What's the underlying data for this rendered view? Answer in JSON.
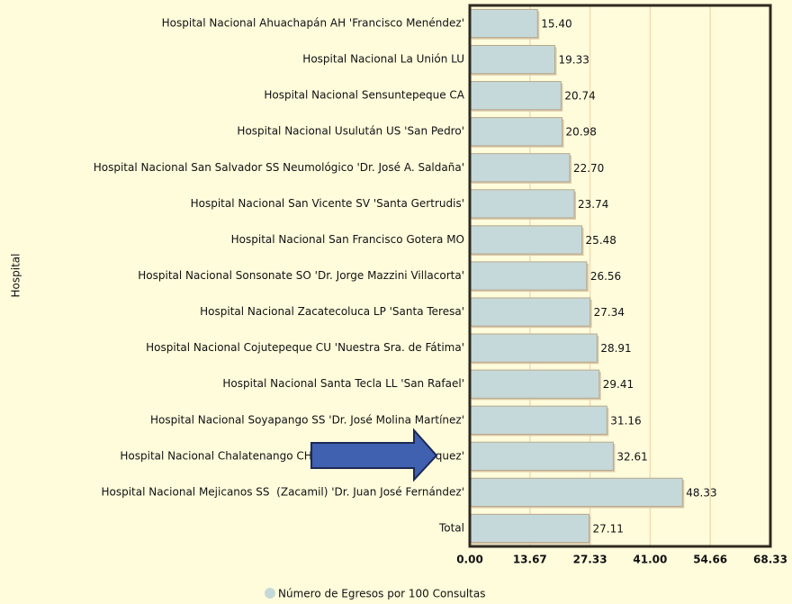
{
  "chart_data": {
    "type": "hbar",
    "ylabel": "Hospital",
    "categories": [
      "Hospital Nacional Ahuachapán AH 'Francisco Menéndez'",
      "Hospital Nacional La Unión LU",
      "Hospital Nacional Sensuntepeque CA",
      "Hospital Nacional Usulután US 'San Pedro'",
      "Hospital Nacional San Salvador SS Neumológico 'Dr. José A. Saldaña'",
      "Hospital Nacional San Vicente SV 'Santa Gertrudis'",
      "Hospital Nacional San Francisco Gotera MO",
      "Hospital Nacional Sonsonate SO 'Dr. Jorge Mazzini Villacorta'",
      "Hospital Nacional Zacatecoluca LP 'Santa Teresa'",
      "Hospital Nacional Cojutepeque CU 'Nuestra Sra. de Fátima'",
      "Hospital Nacional Santa Tecla LL 'San Rafael'",
      "Hospital Nacional Soyapango SS 'Dr. José Molina Martínez'",
      "Hospital Nacional Chalatenango CH 'Dr. Luis Edmundo Vásquez'",
      "Hospital Nacional Mejicanos SS  (Zacamil) 'Dr. Juan José Fernández'",
      "Total"
    ],
    "series": [
      {
        "name": "Número de Egresos por 100 Consultas",
        "color": "#c5d9da",
        "values": [
          15.4,
          19.33,
          20.74,
          20.98,
          22.7,
          23.74,
          25.48,
          26.56,
          27.34,
          28.91,
          29.41,
          31.16,
          32.61,
          48.33,
          27.11
        ],
        "value_labels": [
          "15.40",
          "19.33",
          "20.74",
          "20.98",
          "22.70",
          "23.74",
          "25.48",
          "26.56",
          "27.34",
          "28.91",
          "29.41",
          "31.16",
          "32.61",
          "48.33",
          "27.11"
        ]
      }
    ],
    "xlim": [
      0,
      68.33
    ],
    "xticks": [
      {
        "value": 0,
        "label": "0.00"
      },
      13.67,
      27.33,
      {
        "value": 41,
        "label": "41.00"
      },
      54.66,
      68.33
    ],
    "grid": true
  }
}
